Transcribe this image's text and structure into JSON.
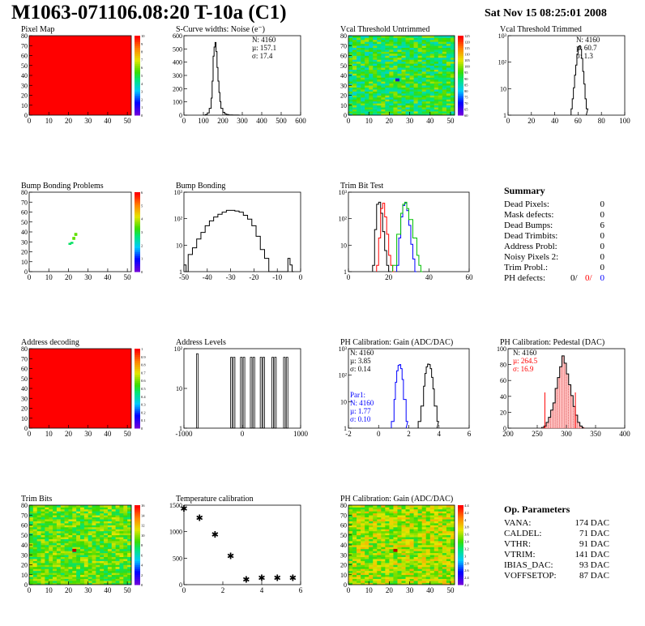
{
  "header": {
    "title": "M1063-071106.08:20 T-10a (C1)",
    "date": "Sat Nov 15 08:25:01 2008"
  },
  "colors": {
    "red": "#ff0000",
    "green": "#00c000",
    "blue": "#0000ff",
    "black": "#000000"
  },
  "panels": {
    "pixel_map": {
      "title": "Pixel Map",
      "x_ticks": [
        "0",
        "10",
        "20",
        "30",
        "40",
        "50"
      ],
      "y_ticks": [
        "0",
        "10",
        "20",
        "30",
        "40",
        "50",
        "60",
        "70",
        "80"
      ],
      "z_ticks": [
        "0",
        "1",
        "2",
        "3",
        "4",
        "5",
        "6",
        "7",
        "8",
        "9",
        "10"
      ],
      "fill": "uniform-red"
    },
    "scurve": {
      "title": "S-Curve widths: Noise (e⁻)",
      "x_ticks": [
        "0",
        "100",
        "200",
        "300",
        "400",
        "500",
        "600"
      ],
      "y_ticks": [
        "0",
        "100",
        "200",
        "300",
        "400",
        "500",
        "600"
      ],
      "stats": [
        "N: 4160",
        "µ: 157.1",
        "σ: 17.4"
      ]
    },
    "vcal_untrimmed": {
      "title": "Vcal Threshold Untrimmed",
      "x_ticks": [
        "0",
        "10",
        "20",
        "30",
        "40",
        "50"
      ],
      "y_ticks": [
        "0",
        "10",
        "20",
        "30",
        "40",
        "50",
        "60",
        "70",
        "80"
      ],
      "z_ticks": [
        "60",
        "65",
        "70",
        "75",
        "80",
        "85",
        "90",
        "95",
        "100",
        "105",
        "110",
        "115",
        "120",
        "125"
      ],
      "fill": "noise-cyan-green"
    },
    "vcal_trimmed": {
      "title": "Vcal Threshold Trimmed",
      "x_ticks": [
        "0",
        "20",
        "40",
        "60",
        "80",
        "100"
      ],
      "y_ticks": [
        "1",
        "10",
        "10²",
        "10³"
      ],
      "stats": [
        "N: 4160",
        "µ: 60.7",
        "σ:  1.3"
      ]
    },
    "bump_problems": {
      "title": "Bump Bonding Problems",
      "x_ticks": [
        "0",
        "10",
        "20",
        "30",
        "40",
        "50"
      ],
      "y_ticks": [
        "0",
        "10",
        "20",
        "30",
        "40",
        "50",
        "60",
        "70",
        "80"
      ],
      "z_ticks": [
        "0",
        "1",
        "2",
        "3",
        "4",
        "5",
        "6"
      ]
    },
    "bump_bonding": {
      "title": "Bump Bonding",
      "x_ticks": [
        "-50",
        "-40",
        "-30",
        "-20",
        "-10",
        "0"
      ],
      "y_ticks": [
        "1",
        "10",
        "10²",
        "10³"
      ]
    },
    "trim_bit_test": {
      "title": "Trim Bit Test",
      "x_ticks": [
        "0",
        "20",
        "40",
        "60"
      ],
      "y_ticks": [
        "1",
        "10",
        "10²",
        "10³"
      ]
    },
    "address_decoding": {
      "title": "Address decoding",
      "x_ticks": [
        "0",
        "10",
        "20",
        "30",
        "40",
        "50"
      ],
      "y_ticks": [
        "0",
        "10",
        "20",
        "30",
        "40",
        "50",
        "60",
        "70",
        "80"
      ],
      "z_ticks": [
        "0",
        "0.1",
        "0.2",
        "0.3",
        "0.4",
        "0.5",
        "0.6",
        "0.7",
        "0.8",
        "0.9",
        "1"
      ],
      "fill": "uniform-red"
    },
    "address_levels": {
      "title": "Address Levels",
      "x_ticks": [
        "-1000",
        "0",
        "1000"
      ],
      "y_ticks": [
        "1",
        "10",
        "10²"
      ]
    },
    "ph_gain": {
      "title": "PH Calibration: Gain (ADC/DAC)",
      "x_ticks": [
        "-2",
        "0",
        "2",
        "4",
        "6"
      ],
      "y_ticks": [
        "1",
        "10",
        "10²",
        "10³"
      ],
      "stats": [
        "N: 4160",
        "µ: 3.85",
        "σ: 0.14"
      ],
      "par1": [
        "Par1:",
        "N: 4160",
        "µ: 1.77",
        "σ: 0.10"
      ]
    },
    "ph_pedestal": {
      "title": "PH Calibration: Pedestal (DAC)",
      "x_ticks": [
        "200",
        "250",
        "300",
        "350",
        "400"
      ],
      "y_ticks": [
        "0",
        "20",
        "40",
        "60",
        "80",
        "100"
      ],
      "stats": [
        "N: 4160",
        "µ: 264.5",
        "σ: 16.9"
      ]
    },
    "trim_bits": {
      "title": "Trim Bits",
      "x_ticks": [
        "0",
        "10",
        "20",
        "30",
        "40",
        "50"
      ],
      "y_ticks": [
        "0",
        "10",
        "20",
        "30",
        "40",
        "50",
        "60",
        "70",
        "80"
      ],
      "z_ticks": [
        "0",
        "2",
        "4",
        "6",
        "8",
        "10",
        "12",
        "14",
        "16"
      ],
      "fill": "noise-green"
    },
    "temperature": {
      "title": "Temperature calibration",
      "x_ticks": [
        "0",
        "2",
        "4",
        "6"
      ],
      "y_ticks": [
        "0",
        "500",
        "1000",
        "1500"
      ]
    },
    "ph_gain_map": {
      "title": "PH Calibration: Gain (ADC/DAC)",
      "x_ticks": [
        "0",
        "10",
        "20",
        "30",
        "40",
        "50"
      ],
      "y_ticks": [
        "0",
        "10",
        "20",
        "30",
        "40",
        "50",
        "60",
        "70",
        "80"
      ],
      "z_ticks": [
        "2.2",
        "2.4",
        "2.6",
        "2.8",
        "3",
        "3.2",
        "3.4",
        "3.6",
        "3.8",
        "4",
        "4.2",
        "4.4"
      ],
      "fill": "noise-green-yellow"
    }
  },
  "summary": {
    "title": "Summary",
    "rows": [
      {
        "label": "Dead Pixels:",
        "value": "0"
      },
      {
        "label": "Mask defects:",
        "value": "0"
      },
      {
        "label": "Dead Bumps:",
        "value": "6"
      },
      {
        "label": "Dead Trimbits:",
        "value": "0"
      },
      {
        "label": "Address Probl:",
        "value": "0"
      },
      {
        "label": "Noisy Pixels 2:",
        "value": "0"
      },
      {
        "label": "Trim Probl.:",
        "value": "0"
      }
    ],
    "ph": {
      "label": "PH defects:",
      "v1": "0/",
      "v2": "0/",
      "v3": "0"
    }
  },
  "op_params": {
    "title": "Op. Parameters",
    "rows": [
      {
        "label": "VANA:",
        "value": "174 DAC"
      },
      {
        "label": "CALDEL:",
        "value": "71 DAC"
      },
      {
        "label": "VTHR:",
        "value": "91 DAC"
      },
      {
        "label": "VTRIM:",
        "value": "141 DAC"
      },
      {
        "label": "IBIAS_DAC:",
        "value": "93 DAC"
      },
      {
        "label": "VOFFSETOP:",
        "value": "87 DAC"
      }
    ]
  },
  "chart_data": [
    {
      "type": "heatmap",
      "title": "Pixel Map",
      "xlim": [
        0,
        52
      ],
      "ylim": [
        0,
        80
      ],
      "zlim": [
        0,
        10
      ],
      "description_value": "all pixels at max"
    },
    {
      "type": "line",
      "title": "S-Curve widths: Noise (e⁻)",
      "xlim": [
        0,
        600
      ],
      "ylim": [
        0,
        700
      ],
      "x": [
        100,
        110,
        120,
        130,
        140,
        145,
        150,
        155,
        160,
        165,
        170,
        175,
        180,
        185,
        190,
        200,
        210,
        220,
        230,
        250,
        280
      ],
      "values": [
        0,
        5,
        20,
        60,
        150,
        300,
        520,
        600,
        640,
        560,
        420,
        300,
        200,
        120,
        60,
        25,
        10,
        5,
        2,
        1,
        0
      ]
    },
    {
      "type": "line",
      "title": "Vcal Threshold Trimmed",
      "xlim": [
        0,
        100
      ],
      "log_y": true,
      "ylim": [
        0.5,
        3000
      ],
      "x": [
        54,
        55,
        56,
        57,
        58,
        59,
        60,
        61,
        62,
        63,
        64,
        65,
        66,
        67
      ],
      "values": [
        1,
        3,
        10,
        40,
        120,
        400,
        900,
        1000,
        700,
        250,
        60,
        15,
        3,
        1
      ]
    },
    {
      "type": "scatter",
      "title": "Bump Bonding Problems",
      "xlim": [
        0,
        52
      ],
      "ylim": [
        0,
        80
      ],
      "x": [
        20,
        21,
        22,
        22,
        23,
        23
      ],
      "y": [
        27,
        28,
        32,
        33,
        36,
        37
      ]
    },
    {
      "type": "line",
      "title": "Bump Bonding",
      "xlim": [
        -50,
        5
      ],
      "log_y": true,
      "ylim": [
        0.5,
        2000
      ],
      "x": [
        -50,
        -49,
        -48,
        -46,
        -44,
        -42,
        -40,
        -38,
        -36,
        -34,
        -32,
        -30,
        -28,
        -26,
        -24,
        -22,
        -20,
        -18,
        -16,
        -14,
        -12,
        -10,
        -5,
        -1,
        0,
        1
      ],
      "values": [
        1,
        0,
        3,
        6,
        15,
        30,
        60,
        100,
        150,
        200,
        250,
        300,
        300,
        280,
        250,
        180,
        120,
        60,
        20,
        5,
        2,
        0,
        0,
        2,
        1,
        0
      ]
    },
    {
      "type": "line",
      "title": "Trim Bit Test",
      "xlim": [
        0,
        60
      ],
      "log_y": true,
      "ylim": [
        0.5,
        3000
      ],
      "series": [
        {
          "color": "#000000",
          "x": [
            12,
            13,
            14,
            15,
            16,
            17,
            18,
            19,
            20
          ],
          "values": [
            1,
            50,
            800,
            1000,
            300,
            40,
            5,
            1,
            0
          ]
        },
        {
          "color": "#ff0000",
          "x": [
            14,
            15,
            16,
            17,
            18,
            19,
            20,
            21,
            22
          ],
          "values": [
            1,
            20,
            500,
            900,
            200,
            30,
            3,
            1,
            0
          ]
        },
        {
          "color": "#0000ff",
          "x": [
            24,
            25,
            26,
            27,
            28,
            29,
            30,
            31,
            32,
            33
          ],
          "values": [
            1,
            20,
            200,
            700,
            900,
            400,
            80,
            10,
            2,
            0
          ]
        },
        {
          "color": "#00c000",
          "x": [
            22,
            24,
            26,
            27,
            28,
            29,
            30,
            32,
            34,
            35,
            36
          ],
          "values": [
            1,
            30,
            300,
            800,
            1000,
            500,
            150,
            20,
            3,
            1,
            0
          ]
        }
      ]
    },
    {
      "type": "heatmap",
      "title": "Address decoding",
      "xlim": [
        0,
        52
      ],
      "ylim": [
        0,
        80
      ],
      "zlim": [
        0,
        1
      ],
      "description_value": "all pixels at 1"
    },
    {
      "type": "bar",
      "title": "Address Levels",
      "xlim": [
        -1300,
        1300
      ],
      "log_y": true,
      "ylim": [
        0.5,
        300
      ],
      "x": [
        -1020,
        -260,
        -200,
        -40,
        20,
        180,
        240,
        400,
        460,
        660,
        720,
        920,
        980
      ],
      "values": [
        200,
        150,
        150,
        150,
        150,
        150,
        150,
        150,
        150,
        150,
        150,
        150,
        150
      ]
    },
    {
      "type": "line",
      "title": "PH Calibration: Gain (ADC/DAC)",
      "xlim": [
        -2,
        7
      ],
      "log_y": true,
      "ylim": [
        0.5,
        2000
      ],
      "series": [
        {
          "color": "#000000",
          "x": [
            3.2,
            3.4,
            3.6,
            3.7,
            3.8,
            3.9,
            4.0,
            4.1,
            4.2,
            4.3,
            4.4,
            4.6
          ],
          "values": [
            1,
            5,
            40,
            150,
            300,
            400,
            380,
            250,
            100,
            30,
            5,
            1
          ]
        },
        {
          "color": "#0000ff",
          "x": [
            1.2,
            1.4,
            1.5,
            1.6,
            1.7,
            1.8,
            1.9,
            2.0,
            2.1,
            2.3
          ],
          "values": [
            1,
            10,
            60,
            200,
            350,
            380,
            250,
            80,
            10,
            1
          ]
        }
      ]
    },
    {
      "type": "bar",
      "title": "PH Calibration: Pedestal (DAC)",
      "xlim": [
        150,
        410
      ],
      "ylim": [
        0,
        110
      ],
      "x": [
        225,
        230,
        235,
        240,
        245,
        250,
        255,
        260,
        265,
        270,
        275,
        280,
        285,
        290,
        295,
        300,
        305,
        310,
        315
      ],
      "values": [
        1,
        3,
        8,
        15,
        25,
        35,
        55,
        70,
        85,
        100,
        90,
        75,
        60,
        45,
        30,
        18,
        8,
        3,
        1
      ]
    },
    {
      "type": "heatmap",
      "title": "Trim Bits",
      "xlim": [
        0,
        52
      ],
      "ylim": [
        0,
        80
      ],
      "zlim": [
        0,
        16
      ]
    },
    {
      "type": "scatter",
      "title": "Temperature calibration",
      "xlim": [
        0,
        7.5
      ],
      "ylim": [
        -200,
        1800
      ],
      "x": [
        0,
        1,
        2,
        3,
        4,
        5,
        6,
        7
      ],
      "y": [
        1720,
        1480,
        1070,
        520,
        -70,
        -30,
        -30,
        -30
      ]
    },
    {
      "type": "heatmap",
      "title": "PH Calibration: Gain (ADC/DAC)",
      "xlim": [
        0,
        52
      ],
      "ylim": [
        0,
        80
      ],
      "zlim": [
        2.2,
        4.4
      ]
    }
  ]
}
